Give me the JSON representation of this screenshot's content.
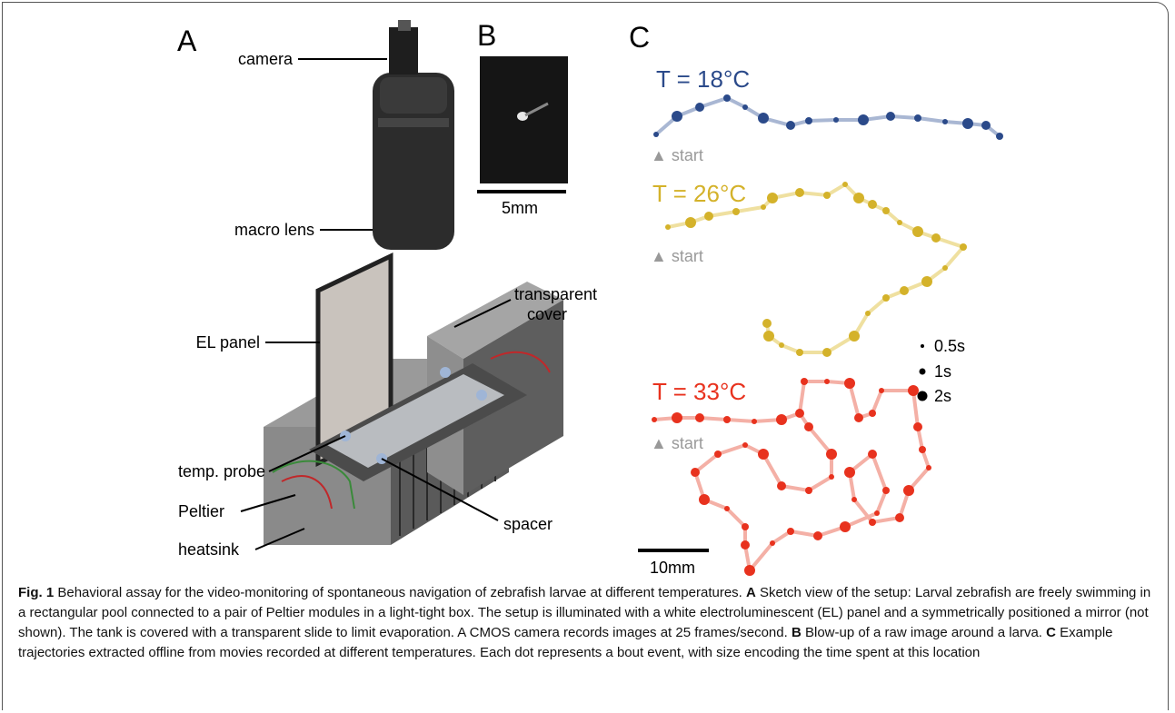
{
  "panel_a": {
    "label": "A",
    "callouts": {
      "camera": "camera",
      "macro_lens": "macro lens",
      "el_panel": "EL panel",
      "transparent_cover": [
        "transparent",
        "cover"
      ],
      "temp_probe": "temp. probe",
      "peltier": "Peltier",
      "heatsink": "heatsink",
      "spacer": "spacer"
    }
  },
  "panel_b": {
    "label": "B",
    "scale": "5mm"
  },
  "panel_c": {
    "label": "C",
    "trajectories": [
      {
        "title": "T = 18°C",
        "start": "▲ start"
      },
      {
        "title": "T = 26°C",
        "start": "▲ start"
      },
      {
        "title": "T = 33°C",
        "start": "▲ start"
      }
    ],
    "size_legend": [
      "0.5s",
      "1s",
      "2s"
    ],
    "scale": "10mm"
  },
  "caption": {
    "label": "Fig. 1",
    "intro": "Behavioral assay for the video-monitoring of spontaneous navigation of zebrafish larvae at different temperatures.",
    "parts": [
      {
        "label": "A",
        "text": "Sketch view of the setup: Larval zebrafish are freely swimming in a rectangular pool connected to a pair of Peltier modules in a light-tight box. The setup is illuminated with a white electroluminescent (EL) panel and a symmetrically positioned a mirror (not shown). The tank is covered with a transparent slide to limit evaporation. A CMOS camera records images at 25 frames/second."
      },
      {
        "label": "B",
        "text": "Blow-up of a raw image around a larva."
      },
      {
        "label": "C",
        "text": "Example trajectories extracted offline from movies recorded at different temperatures. Each dot represents a bout event, with size encoding the time spent at this location"
      }
    ]
  }
}
